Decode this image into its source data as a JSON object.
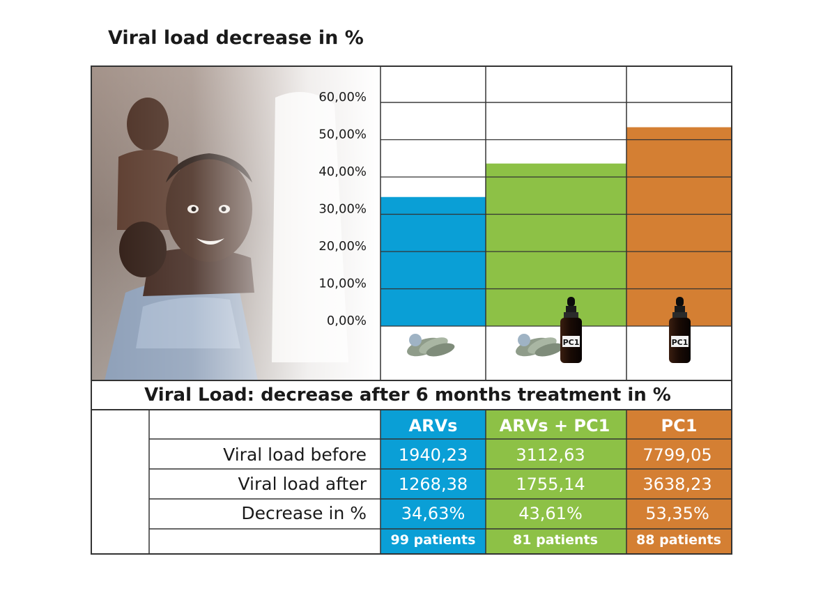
{
  "title": "Viral load decrease in %",
  "chart_data": {
    "type": "bar",
    "title": "Viral load decrease in %",
    "categories": [
      "ARVs",
      "ARVs + PC1",
      "PC1"
    ],
    "values": [
      34.63,
      43.61,
      53.35
    ],
    "ylim": [
      0,
      60
    ],
    "yticks": [
      "0,00%",
      "10,00%",
      "20,00%",
      "30,00%",
      "40,00%",
      "50,00%",
      "60,00%"
    ],
    "xlabel": "",
    "ylabel": "",
    "grid": true
  },
  "colors": {
    "arvs": "#0a9fd6",
    "combo": "#8dc146",
    "pc1": "#d47f33",
    "border": "#333333"
  },
  "icons": {
    "arvs": [
      "pills-icon"
    ],
    "combo": [
      "pills-icon",
      "dropper-bottle-icon"
    ],
    "pc1": [
      "dropper-bottle-icon"
    ],
    "bottle_label": "PC1"
  },
  "table": {
    "title": "Viral Load: decrease after 6 months treatment in %",
    "headers": [
      "ARVs",
      "ARVs + PC1",
      "PC1"
    ],
    "rows": [
      {
        "label": "Viral load before",
        "values": [
          "1940,23",
          "3112,63",
          "7799,05"
        ]
      },
      {
        "label": "Viral load after",
        "values": [
          "1268,38",
          "1755,14",
          "3638,23"
        ]
      },
      {
        "label": "Decrease in %",
        "values": [
          "34,63%",
          "43,61%",
          "53,35%"
        ]
      }
    ],
    "patients": [
      "99 patients",
      "81 patients",
      "88 patients"
    ]
  }
}
